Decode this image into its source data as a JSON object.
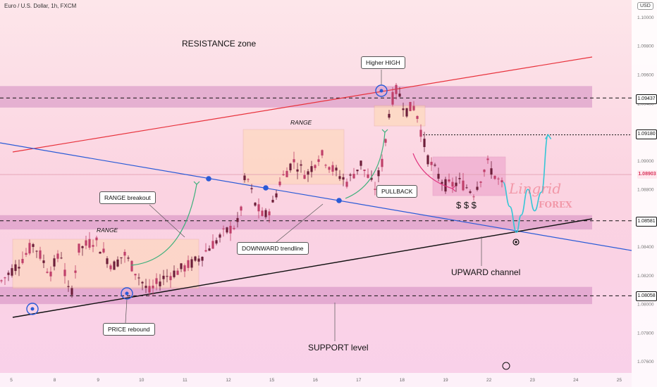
{
  "header": {
    "symbol": "Euro / U.S. Dollar, 1h, FXCM",
    "currency": "USD"
  },
  "annotations": {
    "resistance_zone": "RESISTANCE zone",
    "higher_high": "Higher HIGH",
    "range_upper": "RANGE",
    "range_lower": "RANGE",
    "range_breakout": "RANGE breakout",
    "pullback": "PULLBACK",
    "downward_trendline": "DOWNWARD trendline",
    "upward_channel": "UPWARD channel",
    "price_rebound": "PRICE rebound",
    "support_level": "SUPPORT level",
    "dollars": "$ $ $"
  },
  "watermark": {
    "name": "Lingrid",
    "sub": "FOREX"
  },
  "colors": {
    "resistance_line": "#e8323c",
    "downtrend_line": "#2a5bd7",
    "support_line": "#111111",
    "bull_candle": "#c0406a",
    "bear_candle": "#6d1f3a",
    "projection": "#35c6d6",
    "arrow_green": "#3bb07a",
    "arrow_pink": "#e0357f",
    "price_tag": "#d9335a"
  },
  "price_tags": {
    "resistance": "1.09437",
    "target": "1.09180",
    "current": "1.08903",
    "support_mid": "1.08581",
    "support_low": "1.08058"
  },
  "chart_data": {
    "type": "candlestick",
    "title": "Euro / U.S. Dollar, 1h, FXCM",
    "x_tick_labels": [
      "5",
      "8",
      "9",
      "10",
      "11",
      "12",
      "15",
      "16",
      "17",
      "18",
      "19",
      "22",
      "23",
      "24",
      "25"
    ],
    "y_tick_labels": [
      "1.07600",
      "1.07800",
      "1.08000",
      "1.08200",
      "1.08400",
      "1.08600",
      "1.08800",
      "1.09000",
      "1.09200",
      "1.09400",
      "1.09600",
      "1.09800",
      "1.10000"
    ],
    "ylim": [
      1.0752,
      1.1012
    ],
    "levels": [
      1.09437,
      1.0918,
      1.08903,
      1.08581,
      1.08058
    ],
    "zones": [
      {
        "name": "resistance",
        "low": 1.0937,
        "high": 1.0952
      },
      {
        "name": "middle support",
        "low": 1.0852,
        "high": 1.0862
      },
      {
        "name": "support",
        "low": 1.08,
        "high": 1.0812
      }
    ],
    "path": [
      {
        "x": 0,
        "y": 1.0815
      },
      {
        "x": 0.8,
        "y": 1.0828
      },
      {
        "x": 1.5,
        "y": 1.0842
      },
      {
        "x": 2.2,
        "y": 1.0822
      },
      {
        "x": 2.7,
        "y": 1.0836
      },
      {
        "x": 3.1,
        "y": 1.0803
      },
      {
        "x": 3.5,
        "y": 1.0838
      },
      {
        "x": 4.2,
        "y": 1.0845
      },
      {
        "x": 5.0,
        "y": 1.0826
      },
      {
        "x": 5.5,
        "y": 1.0835
      },
      {
        "x": 6.2,
        "y": 1.0818
      },
      {
        "x": 6.6,
        "y": 1.0808
      },
      {
        "x": 7.2,
        "y": 1.0818
      },
      {
        "x": 8.0,
        "y": 1.0824
      },
      {
        "x": 8.7,
        "y": 1.083
      },
      {
        "x": 9.3,
        "y": 1.084
      },
      {
        "x": 10.0,
        "y": 1.085
      },
      {
        "x": 10.6,
        "y": 1.0857
      },
      {
        "x": 10.9,
        "y": 1.0892
      },
      {
        "x": 11.3,
        "y": 1.087
      },
      {
        "x": 11.7,
        "y": 1.086
      },
      {
        "x": 12.1,
        "y": 1.087
      },
      {
        "x": 12.4,
        "y": 1.0885
      },
      {
        "x": 13.0,
        "y": 1.09
      },
      {
        "x": 13.6,
        "y": 1.089
      },
      {
        "x": 14.2,
        "y": 1.0905
      },
      {
        "x": 14.8,
        "y": 1.0893
      },
      {
        "x": 15.4,
        "y": 1.0885
      },
      {
        "x": 16.0,
        "y": 1.0898
      },
      {
        "x": 16.6,
        "y": 1.088
      },
      {
        "x": 17.0,
        "y": 1.0902
      },
      {
        "x": 17.3,
        "y": 1.094
      },
      {
        "x": 17.6,
        "y": 1.095
      },
      {
        "x": 18.0,
        "y": 1.0935
      },
      {
        "x": 18.4,
        "y": 1.0938
      },
      {
        "x": 18.7,
        "y": 1.0918
      },
      {
        "x": 19.0,
        "y": 1.09
      },
      {
        "x": 19.4,
        "y": 1.089
      },
      {
        "x": 19.8,
        "y": 1.0882
      },
      {
        "x": 20.4,
        "y": 1.0885
      },
      {
        "x": 21.0,
        "y": 1.0878
      },
      {
        "x": 21.6,
        "y": 1.0898
      },
      {
        "x": 22.0,
        "y": 1.0888
      },
      {
        "x": 22.3,
        "y": 1.0882
      }
    ],
    "projection": [
      {
        "x": 22.3,
        "y": 1.0885
      },
      {
        "x": 22.6,
        "y": 1.0868
      },
      {
        "x": 22.9,
        "y": 1.085
      },
      {
        "x": 23.1,
        "y": 1.0862
      },
      {
        "x": 23.4,
        "y": 1.088
      },
      {
        "x": 23.7,
        "y": 1.0865
      },
      {
        "x": 24.0,
        "y": 1.0878
      },
      {
        "x": 24.3,
        "y": 1.0918
      }
    ]
  }
}
